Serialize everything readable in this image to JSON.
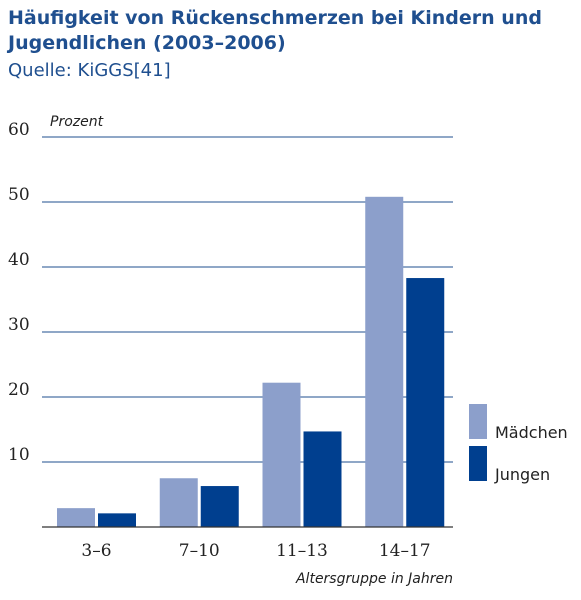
{
  "header": {
    "title": "Häufigkeit von Rückenschmerzen bei Kindern und Jugendlichen (2003–2006)",
    "source": "Quelle: KiGGS[41]"
  },
  "colors": {
    "girls": "#8c9fcb",
    "boys": "#003f8f",
    "title": "#1f4f8f",
    "gridline": "#1f4f8f",
    "axis": "#333333"
  },
  "chart_data": {
    "type": "bar",
    "title": "Häufigkeit von Rückenschmerzen bei Kindern und Jugendlichen (2003–2006)",
    "ylabel": "Prozent",
    "xlabel": "Altersgruppe in Jahren",
    "categories": [
      "3–6",
      "7–10",
      "11–13",
      "14–17"
    ],
    "series": [
      {
        "name": "Mädchen",
        "values": [
          2.9,
          7.5,
          22.2,
          50.8
        ]
      },
      {
        "name": "Jungen",
        "values": [
          2.1,
          6.3,
          14.7,
          38.3
        ]
      }
    ],
    "ylim": [
      0,
      60
    ],
    "yticks": [
      10,
      20,
      30,
      40,
      50,
      60
    ],
    "grid": true,
    "legend": "right"
  }
}
